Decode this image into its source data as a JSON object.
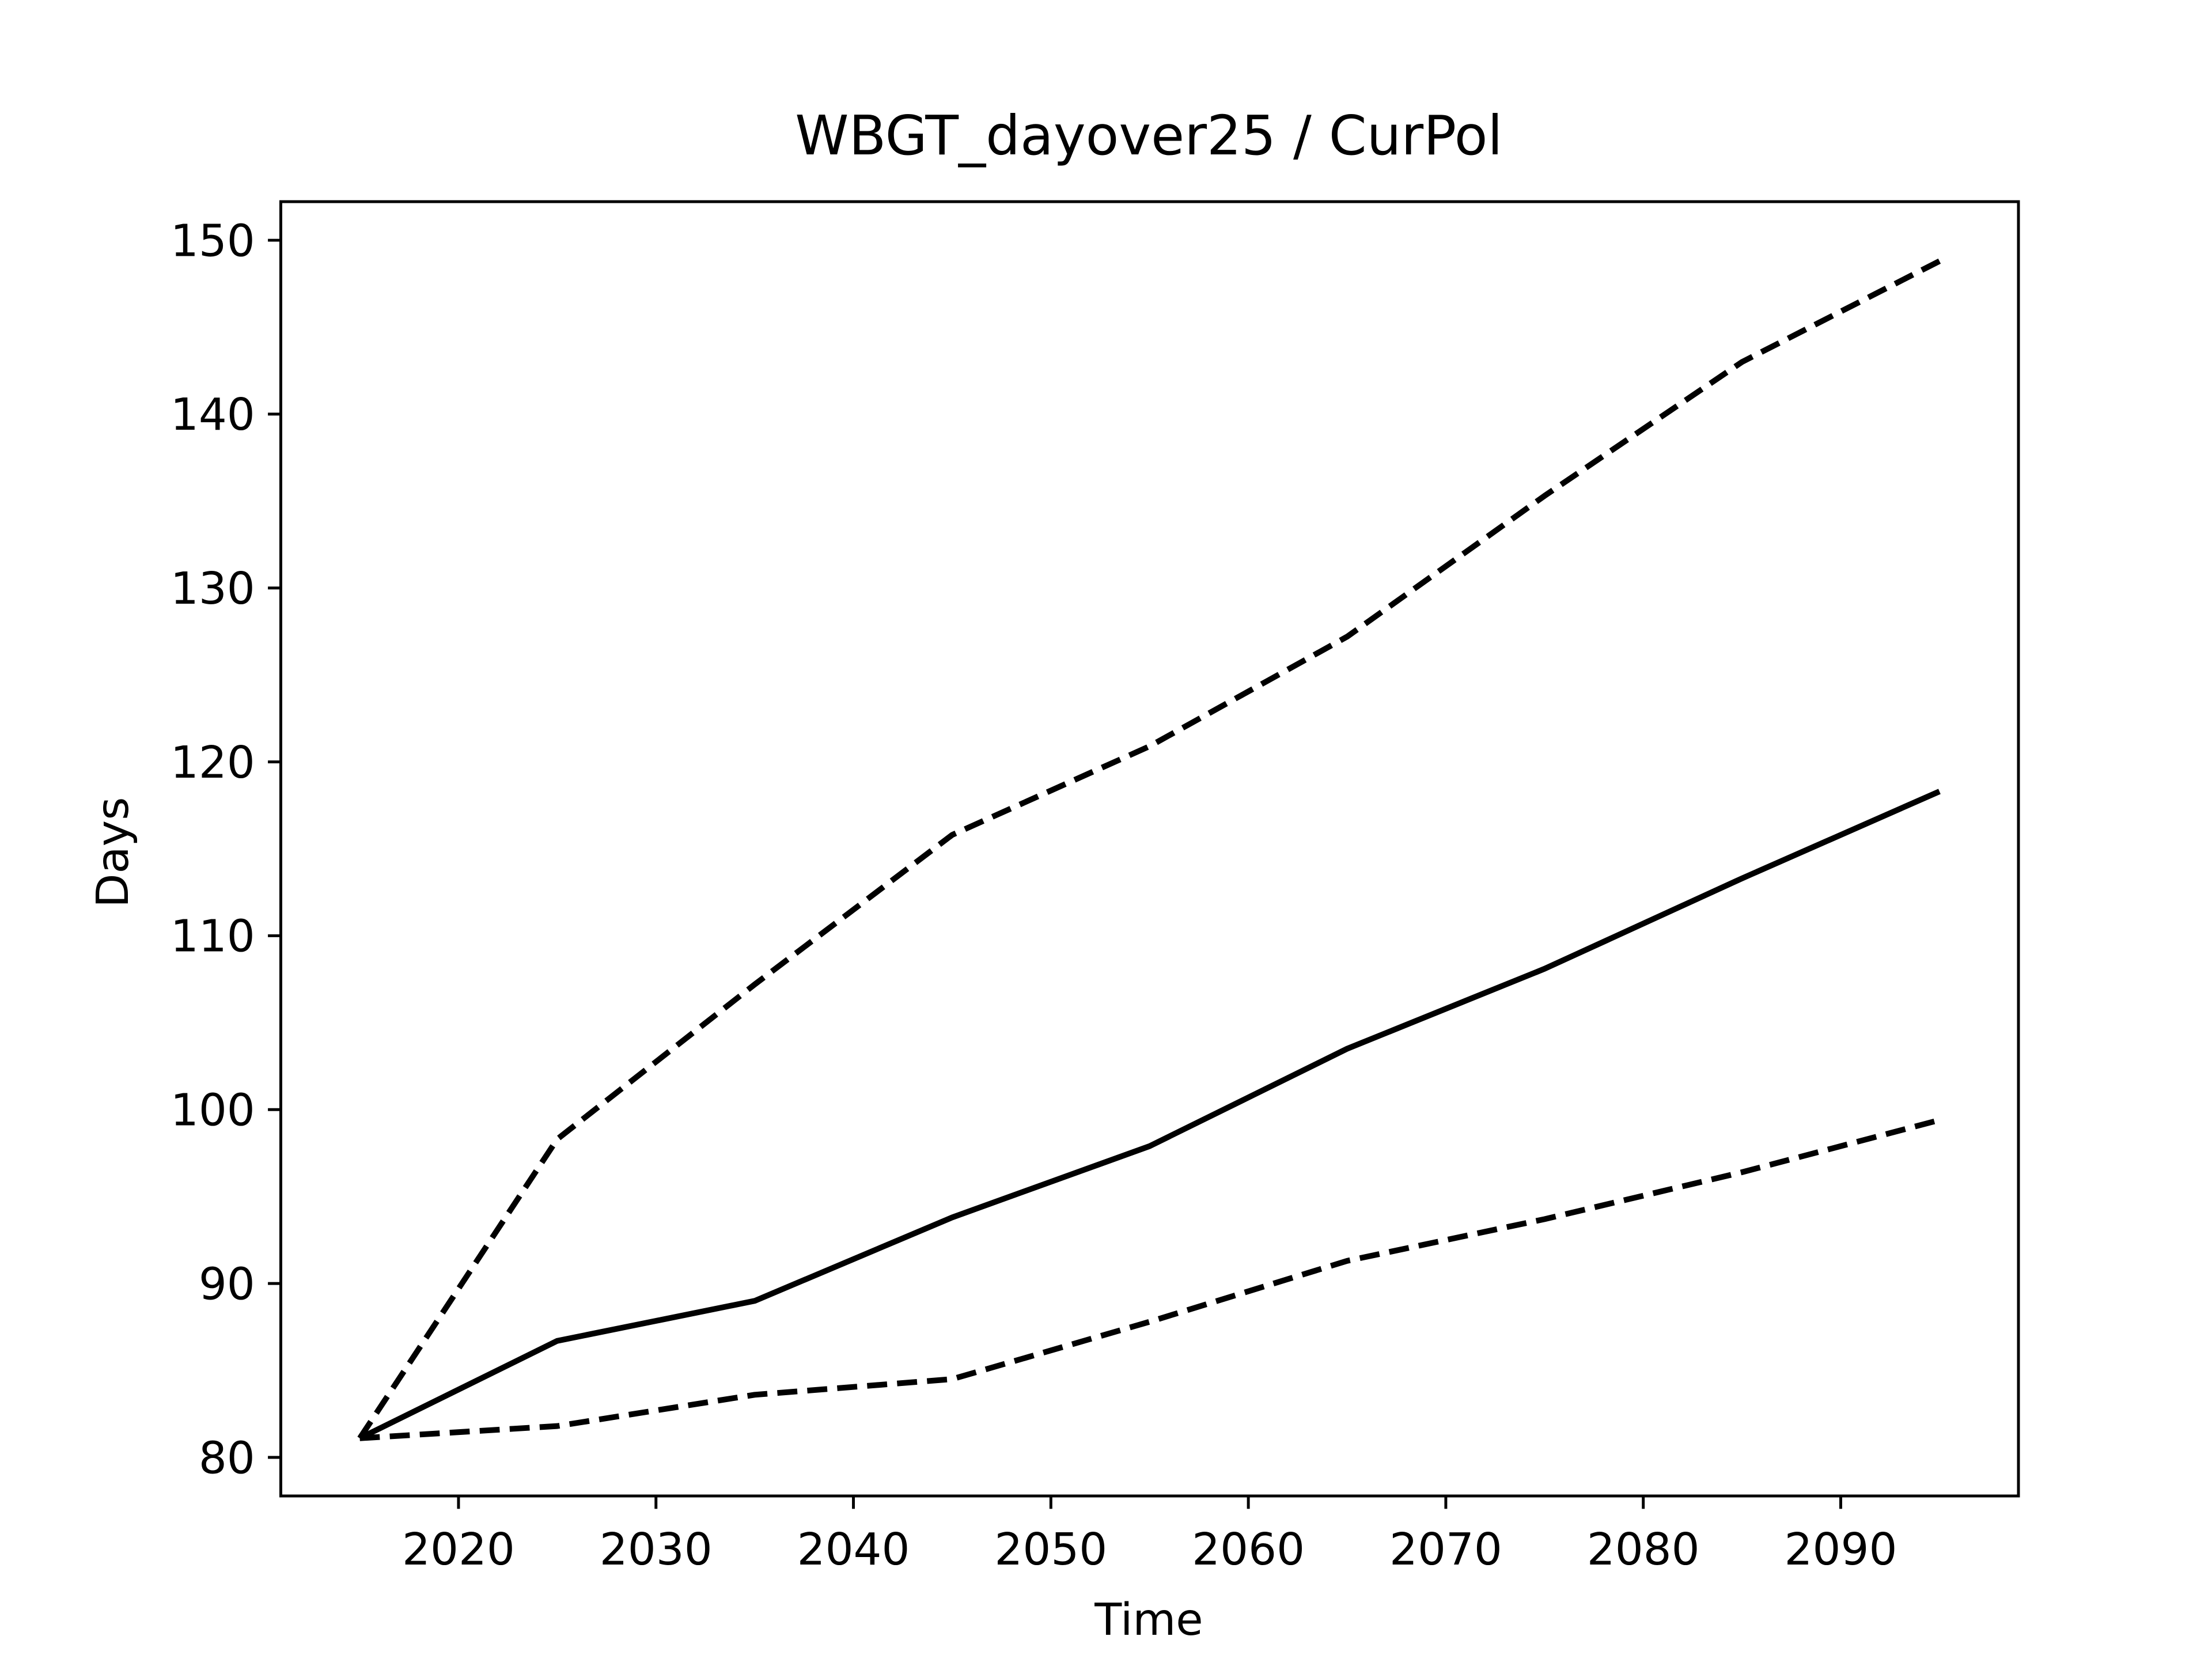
{
  "chart_data": {
    "type": "line",
    "title": "WBGT_dayover25 / CurPol",
    "xlabel": "Time",
    "ylabel": "Days",
    "x": [
      2015,
      2025,
      2035,
      2045,
      2055,
      2065,
      2075,
      2085,
      2095
    ],
    "series": [
      {
        "color": "#000000",
        "linestyle": "solid",
        "values": [
          81.1,
          86.7,
          89.0,
          93.8,
          97.9,
          103.5,
          108.1,
          113.3,
          118.3
        ]
      },
      {
        "color": "#000000",
        "linestyle": "dashed",
        "values": [
          81.1,
          98.3,
          107.2,
          115.8,
          120.9,
          127.2,
          135.3,
          143.0,
          148.8
        ]
      },
      {
        "color": "#000000",
        "linestyle": "dashed",
        "values": [
          81.1,
          81.8,
          83.6,
          84.5,
          87.8,
          91.3,
          93.7,
          96.4,
          99.4
        ]
      }
    ],
    "xlim": [
      2011,
      2099
    ],
    "xticks": [
      2020,
      2030,
      2040,
      2050,
      2060,
      2070,
      2080,
      2090
    ],
    "ylim": [
      77.78,
      152.22
    ],
    "yticks": [
      80,
      90,
      100,
      110,
      120,
      130,
      140,
      150
    ]
  }
}
